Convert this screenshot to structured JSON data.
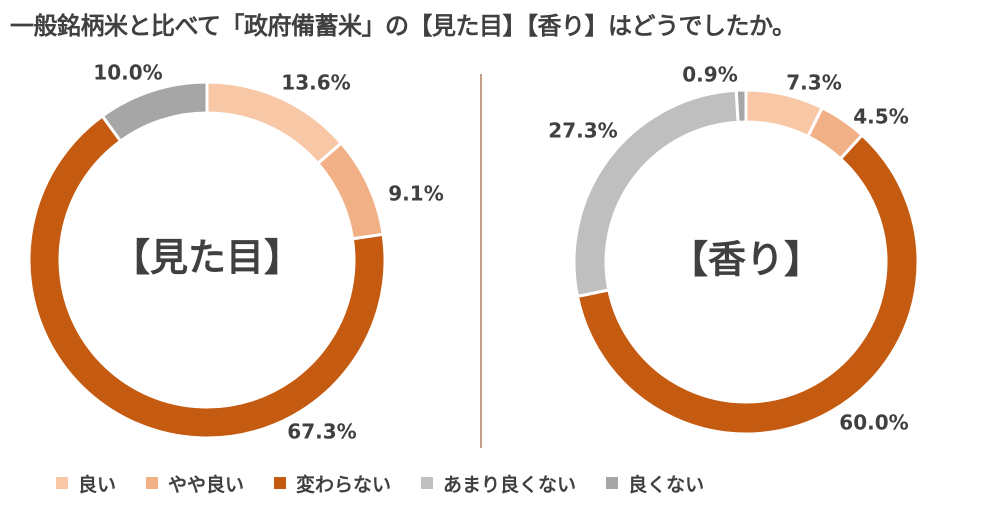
{
  "title": "一般銘柄米と比べて「政府備蓄米」の【見た目】【香り】はどうでしたか。",
  "colors": [
    "#f7c7a6",
    "#f2b086",
    "#c55a11",
    "#bfbfbf",
    "#a6a6a6"
  ],
  "chart_data": [
    {
      "type": "pie",
      "center_label": "【見た目】",
      "categories": [
        "良い",
        "やや良い",
        "変わらない",
        "あまり良くない",
        "良くない"
      ],
      "values": [
        13.6,
        9.1,
        67.3,
        0,
        10.0
      ],
      "labels": [
        "13.6%",
        "9.1%",
        "67.3%",
        "",
        "10.0%"
      ]
    },
    {
      "type": "pie",
      "center_label": "【香り】",
      "categories": [
        "良い",
        "やや良い",
        "変わらない",
        "あまり良くない",
        "良くない"
      ],
      "values": [
        7.3,
        4.5,
        60.0,
        27.3,
        0.9
      ],
      "labels": [
        "7.3%",
        "4.5%",
        "60.0%",
        "27.3%",
        "0.9%"
      ]
    }
  ],
  "legend": [
    "良い",
    "やや良い",
    "変わらない",
    "あまり良くない",
    "良くない"
  ]
}
